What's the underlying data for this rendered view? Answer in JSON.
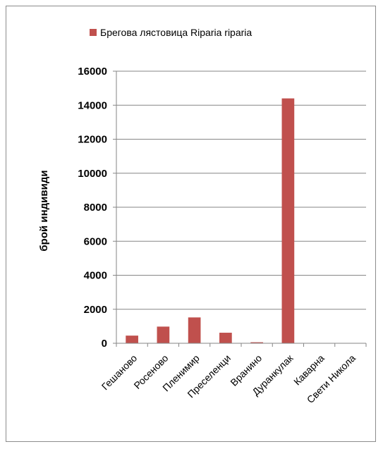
{
  "chart_data": {
    "type": "bar",
    "categories": [
      "Гешаново",
      "Росеново",
      "Пленимир",
      "Преселенци",
      "Вранино",
      "Дуранкулак",
      "Каварна",
      "Свети Никола"
    ],
    "series": [
      {
        "name": "Брегова лястовица Riparia riparia",
        "values": [
          450,
          980,
          1520,
          620,
          60,
          14400,
          0,
          0
        ]
      }
    ],
    "ylabel": "брой индивиди",
    "ylim": [
      0,
      16000
    ],
    "yticks": [
      0,
      2000,
      4000,
      6000,
      8000,
      10000,
      12000,
      14000,
      16000
    ],
    "grid": true,
    "legend": "top",
    "colors": {
      "bar": "#c0504d",
      "grid": "#868686",
      "axis": "#868686"
    }
  }
}
